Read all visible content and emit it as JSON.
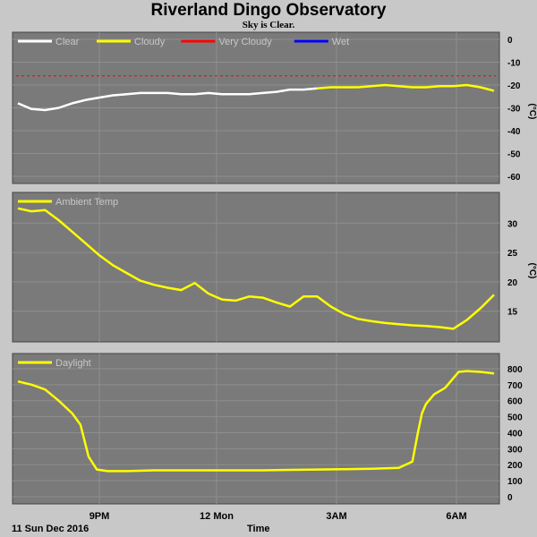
{
  "header": {
    "title": "Riverland Dingo Observatory",
    "subtitle": "Sky is Clear."
  },
  "footer": {
    "date": "11 Sun Dec 2016",
    "xlabel": "Time",
    "xticks": [
      "9PM",
      "12 Mon",
      "3AM",
      "6AM"
    ]
  },
  "colors": {
    "plot_bg": "#7a7a7a",
    "page_bg": "#c8c8c8",
    "clear": "#ffffff",
    "cloudy": "#ffff00",
    "very_cloudy": "#ff0000",
    "wet": "#0000ff"
  },
  "chart_data": [
    {
      "type": "line",
      "title": "",
      "ylabel": "(°C)",
      "ylim": [
        -60,
        0
      ],
      "yticks": [
        0,
        -10,
        -20,
        -30,
        -40,
        -50,
        -60
      ],
      "legend": "top-left",
      "series": [
        {
          "name": "Clear",
          "color": "#ffffff",
          "x": [
            6.0,
            6.5,
            7.0,
            7.5,
            8.0,
            8.5,
            9.0,
            9.5,
            10.0,
            10.5,
            11.0,
            11.5,
            12.0,
            12.5,
            13.0,
            13.5,
            14.0,
            14.5,
            15.0,
            15.5,
            16.0,
            16.5,
            17.0
          ],
          "y": [
            -28,
            -30.5,
            -31,
            -30,
            -28,
            -26.5,
            -25.5,
            -24.5,
            -24,
            -23.5,
            -23.5,
            -23.5,
            -24,
            -24,
            -23.5,
            -24,
            -24,
            -24,
            -23.5,
            -23,
            -22,
            -22,
            -21.5
          ]
        },
        {
          "name": "Cloudy",
          "color": "#ffff00",
          "x": [
            17.0,
            17.5,
            18.0,
            18.5,
            19.0,
            19.5,
            20.0,
            20.5,
            21.0,
            21.5,
            22.0,
            22.5,
            23.0,
            23.5
          ],
          "y": [
            -21.5,
            -21,
            -21,
            -21,
            -20.5,
            -20,
            -20.5,
            -21,
            -21,
            -20.5,
            -20.5,
            -20,
            -21,
            -22.5
          ]
        },
        {
          "name": "Very Cloudy",
          "color": "#ff0000",
          "x": [],
          "y": []
        },
        {
          "name": "Wet",
          "color": "#0000ff",
          "x": [],
          "y": []
        }
      ],
      "threshold_line": {
        "y": -16,
        "color": "#ff0000",
        "style": "dashed"
      }
    },
    {
      "type": "line",
      "title": "",
      "ylabel": "(°C)",
      "ylim": [
        11,
        34
      ],
      "yticks": [
        15,
        20,
        25,
        30
      ],
      "legend": "top-left",
      "series": [
        {
          "name": "Ambient Temp",
          "color": "#ffff00",
          "x": [
            6.0,
            6.5,
            7.0,
            7.5,
            8.0,
            8.5,
            9.0,
            9.5,
            10.0,
            10.5,
            11.0,
            11.5,
            12.0,
            12.5,
            13.0,
            13.5,
            14.0,
            14.5,
            15.0,
            15.5,
            16.0,
            16.5,
            17.0,
            17.5,
            18.0,
            18.5,
            19.0,
            19.5,
            20.0,
            20.5,
            21.0,
            21.5,
            22.0,
            22.5,
            23.0,
            23.5
          ],
          "y": [
            32.5,
            32,
            32.2,
            30.5,
            28.5,
            26.5,
            24.5,
            22.8,
            21.5,
            20.2,
            19.5,
            19,
            18.6,
            19.8,
            18,
            17,
            16.8,
            17.5,
            17.3,
            16.5,
            15.8,
            17.5,
            17.5,
            15.8,
            14.5,
            13.7,
            13.3,
            13,
            12.8,
            12.6,
            12.5,
            12.3,
            12,
            13.5,
            15.5,
            17.8
          ]
        }
      ]
    },
    {
      "type": "line",
      "title": "",
      "ylabel": "",
      "ylim": [
        0,
        850
      ],
      "yticks": [
        0,
        100,
        200,
        300,
        400,
        500,
        600,
        700,
        800
      ],
      "legend": "top-left",
      "series": [
        {
          "name": "Daylight",
          "color": "#ffff00",
          "x": [
            6.0,
            6.5,
            7.0,
            7.5,
            8.0,
            8.3,
            8.6,
            8.9,
            9.3,
            10.0,
            11.0,
            12.0,
            13.0,
            14.0,
            15.0,
            16.0,
            17.0,
            18.0,
            19.0,
            20.0,
            20.5,
            20.7,
            20.85,
            21.0,
            21.3,
            21.7,
            22.0,
            22.2,
            22.5,
            23.0,
            23.5
          ],
          "y": [
            720,
            700,
            670,
            600,
            520,
            450,
            250,
            170,
            160,
            160,
            165,
            165,
            165,
            165,
            165,
            168,
            170,
            172,
            175,
            180,
            220,
            400,
            520,
            580,
            640,
            680,
            740,
            780,
            785,
            780,
            770
          ]
        }
      ]
    }
  ]
}
